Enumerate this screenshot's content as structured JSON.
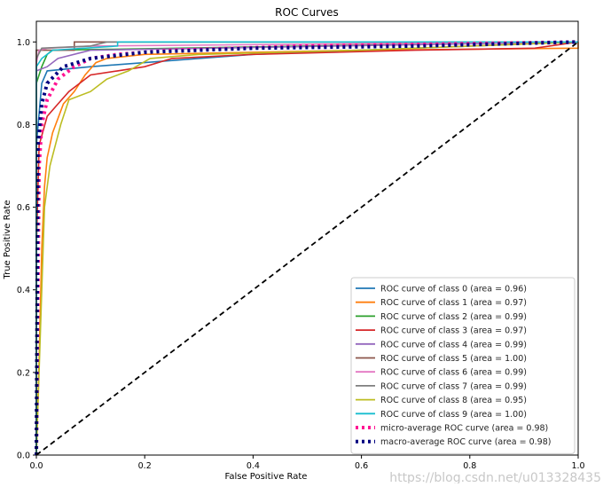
{
  "chart_data": {
    "type": "line",
    "title": "ROC Curves",
    "xlabel": "False Positive Rate",
    "ylabel": "True Positive Rate",
    "xlim": [
      0.0,
      1.0
    ],
    "ylim": [
      0.0,
      1.05
    ],
    "xticks": [
      "0.0",
      "0.2",
      "0.4",
      "0.6",
      "0.8",
      "1.0"
    ],
    "yticks": [
      "0.0",
      "0.2",
      "0.4",
      "0.6",
      "0.8",
      "1.0"
    ],
    "grid": false,
    "legend_position": "lower-right",
    "series": [
      {
        "name": "ROC curve of class 0 (area = 0.96)",
        "color": "#1f77b4",
        "style": "solid",
        "points": [
          [
            0,
            0
          ],
          [
            0,
            0.75
          ],
          [
            0.01,
            0.9
          ],
          [
            0.02,
            0.93
          ],
          [
            0.1,
            0.94
          ],
          [
            0.4,
            0.97
          ],
          [
            0.6,
            0.98
          ],
          [
            1,
            1
          ]
        ]
      },
      {
        "name": "ROC curve of class 1 (area = 0.97)",
        "color": "#ff7f0e",
        "style": "solid",
        "points": [
          [
            0,
            0
          ],
          [
            0.005,
            0.23
          ],
          [
            0.01,
            0.5
          ],
          [
            0.015,
            0.65
          ],
          [
            0.02,
            0.72
          ],
          [
            0.03,
            0.78
          ],
          [
            0.05,
            0.85
          ],
          [
            0.07,
            0.88
          ],
          [
            0.09,
            0.92
          ],
          [
            0.11,
            0.95
          ],
          [
            0.13,
            0.96
          ],
          [
            0.2,
            0.97
          ],
          [
            0.6,
            0.98
          ],
          [
            1,
            0.985
          ],
          [
            1,
            1
          ]
        ]
      },
      {
        "name": "ROC curve of class 2 (area = 0.99)",
        "color": "#2ca02c",
        "style": "solid",
        "points": [
          [
            0,
            0
          ],
          [
            0,
            0.9
          ],
          [
            0.01,
            0.94
          ],
          [
            0.02,
            0.97
          ],
          [
            0.03,
            0.98
          ],
          [
            0.5,
            0.99
          ],
          [
            1,
            1
          ]
        ]
      },
      {
        "name": "ROC curve of class 3 (area = 0.97)",
        "color": "#d62728",
        "style": "solid",
        "points": [
          [
            0,
            0
          ],
          [
            0,
            0.5
          ],
          [
            0.005,
            0.75
          ],
          [
            0.02,
            0.82
          ],
          [
            0.04,
            0.85
          ],
          [
            0.06,
            0.88
          ],
          [
            0.08,
            0.9
          ],
          [
            0.1,
            0.92
          ],
          [
            0.15,
            0.93
          ],
          [
            0.2,
            0.94
          ],
          [
            0.25,
            0.96
          ],
          [
            0.4,
            0.97
          ],
          [
            0.7,
            0.98
          ],
          [
            0.92,
            0.985
          ],
          [
            1,
            1
          ]
        ]
      },
      {
        "name": "ROC curve of class 4 (area = 0.99)",
        "color": "#9467bd",
        "style": "solid",
        "points": [
          [
            0,
            0
          ],
          [
            0,
            0.93
          ],
          [
            0.02,
            0.94
          ],
          [
            0.04,
            0.96
          ],
          [
            0.1,
            0.98
          ],
          [
            1,
            1
          ]
        ]
      },
      {
        "name": "ROC curve of class 5 (area = 1.00)",
        "color": "#8c564b",
        "style": "solid",
        "points": [
          [
            0,
            0
          ],
          [
            0,
            0.98
          ],
          [
            0.07,
            0.98
          ],
          [
            0.07,
            1
          ],
          [
            1,
            1
          ]
        ]
      },
      {
        "name": "ROC curve of class 6 (area = 0.99)",
        "color": "#e377c2",
        "style": "solid",
        "points": [
          [
            0,
            0
          ],
          [
            0,
            0.95
          ],
          [
            0.005,
            0.98
          ],
          [
            0.02,
            0.985
          ],
          [
            0.1,
            0.99
          ],
          [
            1,
            1
          ]
        ]
      },
      {
        "name": "ROC curve of class 7 (area = 0.99)",
        "color": "#7f7f7f",
        "style": "solid",
        "points": [
          [
            0,
            0
          ],
          [
            0,
            0.96
          ],
          [
            0.01,
            0.985
          ],
          [
            0.1,
            0.99
          ],
          [
            0.13,
            1
          ],
          [
            1,
            1
          ]
        ]
      },
      {
        "name": "ROC curve of class 8 (area = 0.95)",
        "color": "#bcbd22",
        "style": "solid",
        "points": [
          [
            0,
            0
          ],
          [
            0.01,
            0.4
          ],
          [
            0.015,
            0.6
          ],
          [
            0.025,
            0.7
          ],
          [
            0.035,
            0.75
          ],
          [
            0.045,
            0.8
          ],
          [
            0.06,
            0.86
          ],
          [
            0.1,
            0.88
          ],
          [
            0.13,
            0.91
          ],
          [
            0.17,
            0.93
          ],
          [
            0.21,
            0.96
          ],
          [
            0.3,
            0.97
          ],
          [
            0.6,
            0.98
          ],
          [
            1,
            1
          ]
        ]
      },
      {
        "name": "ROC curve of class 9 (area = 1.00)",
        "color": "#17becf",
        "style": "solid",
        "points": [
          [
            0,
            0
          ],
          [
            0,
            0.94
          ],
          [
            0.01,
            0.96
          ],
          [
            0.03,
            0.98
          ],
          [
            0.15,
            0.99
          ],
          [
            0.15,
            1
          ],
          [
            1,
            1
          ]
        ]
      },
      {
        "name": "micro-average ROC curve (area = 0.98)",
        "color": "#ff1493",
        "style": "dotted",
        "points": [
          [
            0,
            0
          ],
          [
            0.005,
            0.7
          ],
          [
            0.01,
            0.8
          ],
          [
            0.02,
            0.86
          ],
          [
            0.04,
            0.91
          ],
          [
            0.07,
            0.94
          ],
          [
            0.1,
            0.96
          ],
          [
            0.15,
            0.97
          ],
          [
            0.25,
            0.98
          ],
          [
            0.5,
            0.99
          ],
          [
            1,
            1
          ]
        ]
      },
      {
        "name": "macro-average ROC curve (area = 0.98)",
        "color": "#000080",
        "style": "dotted",
        "points": [
          [
            0,
            0
          ],
          [
            0.003,
            0.75
          ],
          [
            0.01,
            0.85
          ],
          [
            0.02,
            0.9
          ],
          [
            0.05,
            0.94
          ],
          [
            0.1,
            0.96
          ],
          [
            0.2,
            0.975
          ],
          [
            0.4,
            0.985
          ],
          [
            0.7,
            0.99
          ],
          [
            1,
            1
          ]
        ]
      }
    ],
    "reference_line": {
      "color": "#000000",
      "style": "dashed",
      "points": [
        [
          0,
          0
        ],
        [
          1,
          1
        ]
      ]
    }
  },
  "watermark": "https://blog.csdn.net/u013328435"
}
